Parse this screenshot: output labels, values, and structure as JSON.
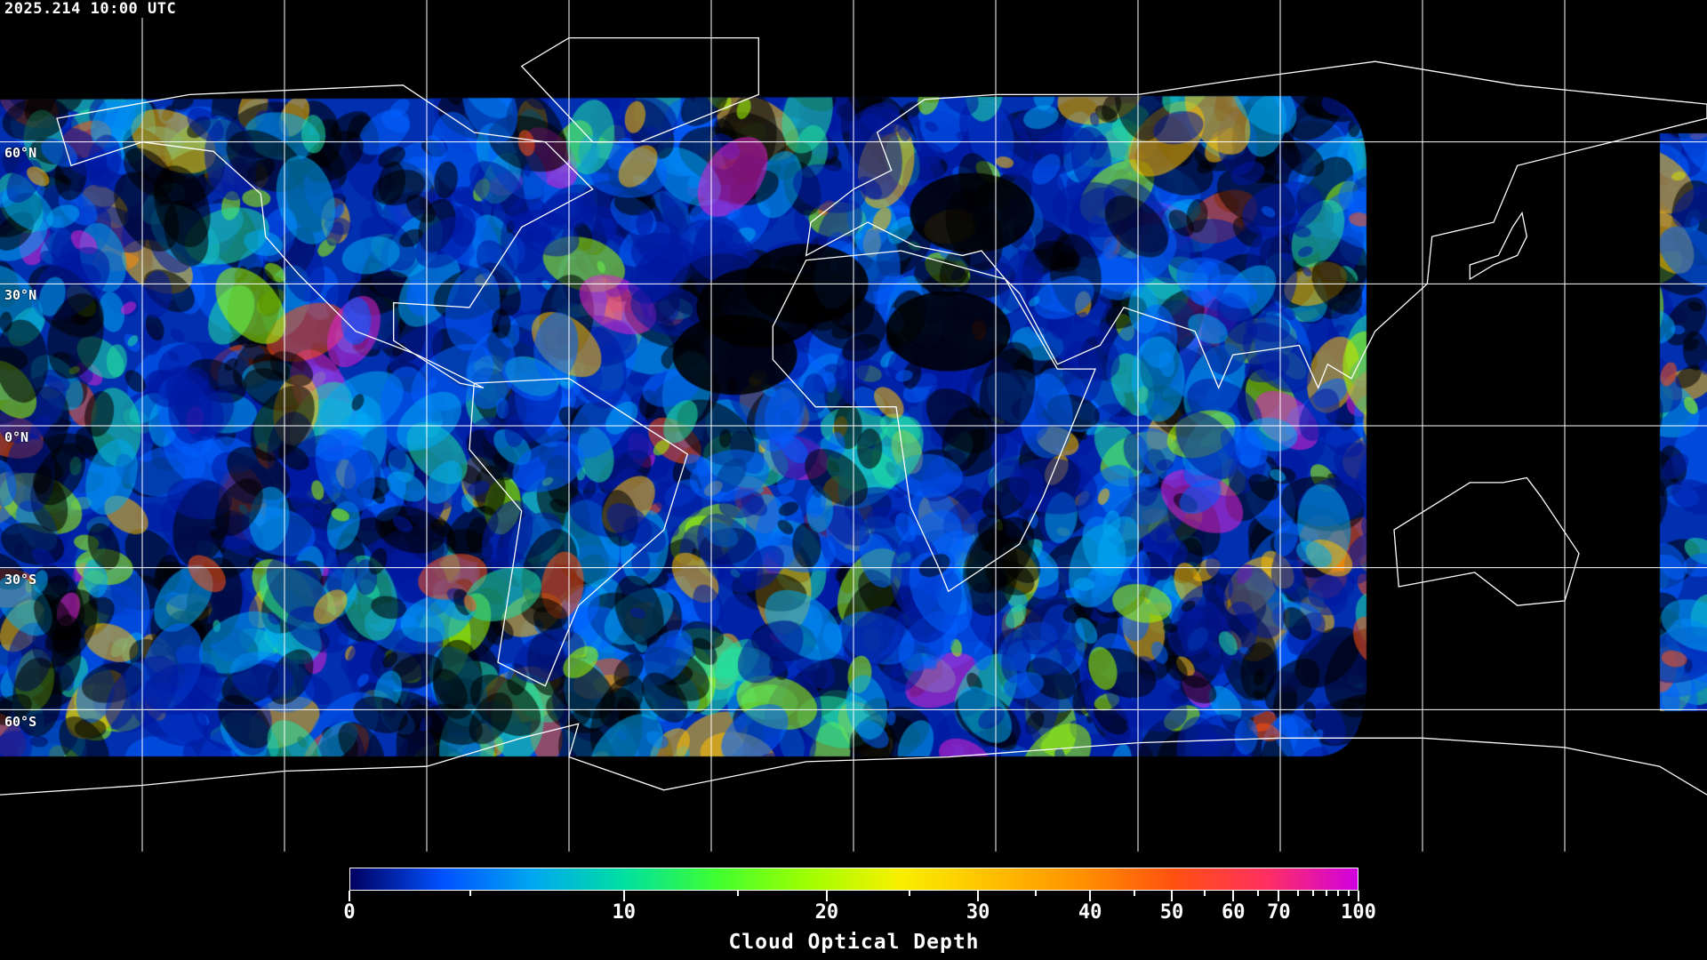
{
  "header": {
    "timestamp": "2025.214 10:00 UTC"
  },
  "map": {
    "projection": "equirectangular",
    "grid_spacing_degrees": 30,
    "gridline_color": "#ffffff",
    "coastline_color": "#ffffff",
    "lat_labels": [
      "60°N",
      "30°N",
      "0°N",
      "30°S",
      "60°S"
    ]
  },
  "colorbar": {
    "title": "Cloud Optical Depth",
    "min": 0,
    "max": 100,
    "tick_labels": [
      "0",
      "10",
      "20",
      "30",
      "40",
      "50",
      "60",
      "70",
      "100"
    ],
    "colors": [
      "#000060",
      "#0050ff",
      "#00a8f0",
      "#00e0a0",
      "#40ff30",
      "#a0ff00",
      "#f8f000",
      "#ffc000",
      "#ff9000",
      "#ff5010",
      "#ff3060",
      "#d000e0"
    ]
  }
}
